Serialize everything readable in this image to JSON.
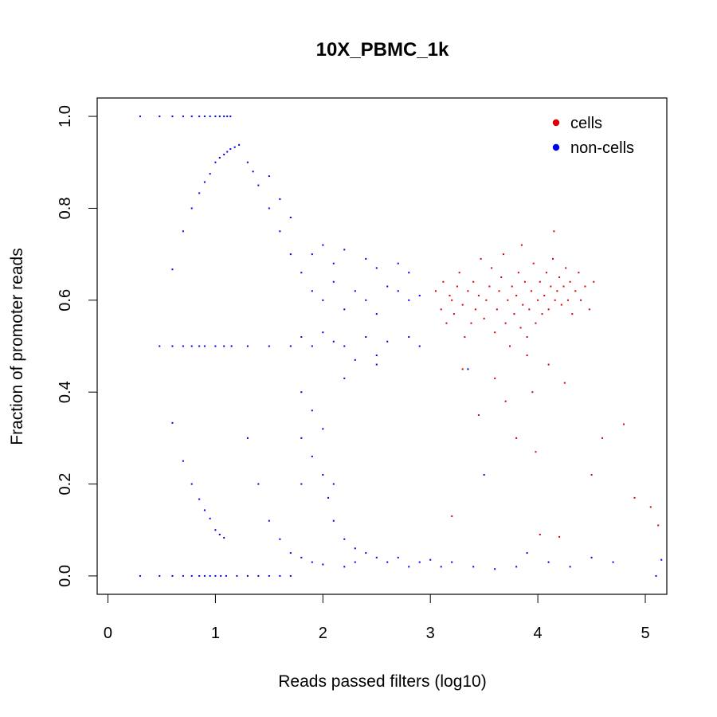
{
  "chart_data": {
    "type": "scatter",
    "title": "10X_PBMC_1k",
    "xlabel": "Reads passed filters (log10)",
    "ylabel": "Fraction of promoter reads",
    "xlim": [
      -0.1,
      5.2
    ],
    "ylim": [
      -0.04,
      1.04
    ],
    "x_ticks": [
      0,
      1,
      2,
      3,
      4,
      5
    ],
    "y_ticks": [
      0.0,
      0.2,
      0.4,
      0.6,
      0.8,
      1.0
    ],
    "x_tick_labels": [
      "0",
      "1",
      "2",
      "3",
      "4",
      "5"
    ],
    "y_tick_labels": [
      "0.0",
      "0.2",
      "0.4",
      "0.6",
      "0.8",
      "1.0"
    ],
    "grid": false,
    "legend_position": "top-right",
    "series": [
      {
        "name": "cells",
        "color": "#dd0000",
        "points": [
          [
            3.05,
            0.62
          ],
          [
            3.1,
            0.58
          ],
          [
            3.12,
            0.64
          ],
          [
            3.15,
            0.55
          ],
          [
            3.18,
            0.61
          ],
          [
            3.2,
            0.6
          ],
          [
            3.22,
            0.57
          ],
          [
            3.25,
            0.63
          ],
          [
            3.27,
            0.66
          ],
          [
            3.3,
            0.59
          ],
          [
            3.32,
            0.52
          ],
          [
            3.35,
            0.62
          ],
          [
            3.38,
            0.55
          ],
          [
            3.4,
            0.64
          ],
          [
            3.42,
            0.58
          ],
          [
            3.45,
            0.61
          ],
          [
            3.47,
            0.69
          ],
          [
            3.5,
            0.56
          ],
          [
            3.52,
            0.6
          ],
          [
            3.55,
            0.63
          ],
          [
            3.57,
            0.67
          ],
          [
            3.6,
            0.53
          ],
          [
            3.62,
            0.58
          ],
          [
            3.64,
            0.62
          ],
          [
            3.66,
            0.65
          ],
          [
            3.68,
            0.7
          ],
          [
            3.7,
            0.55
          ],
          [
            3.72,
            0.6
          ],
          [
            3.74,
            0.5
          ],
          [
            3.76,
            0.63
          ],
          [
            3.78,
            0.57
          ],
          [
            3.8,
            0.61
          ],
          [
            3.82,
            0.66
          ],
          [
            3.84,
            0.54
          ],
          [
            3.86,
            0.59
          ],
          [
            3.88,
            0.64
          ],
          [
            3.9,
            0.52
          ],
          [
            3.92,
            0.58
          ],
          [
            3.94,
            0.62
          ],
          [
            3.96,
            0.68
          ],
          [
            3.98,
            0.55
          ],
          [
            4.0,
            0.6
          ],
          [
            4.02,
            0.64
          ],
          [
            4.04,
            0.57
          ],
          [
            4.06,
            0.61
          ],
          [
            4.08,
            0.66
          ],
          [
            4.1,
            0.58
          ],
          [
            4.12,
            0.63
          ],
          [
            4.14,
            0.69
          ],
          [
            4.16,
            0.6
          ],
          [
            4.18,
            0.62
          ],
          [
            4.2,
            0.65
          ],
          [
            4.22,
            0.59
          ],
          [
            4.24,
            0.63
          ],
          [
            4.26,
            0.67
          ],
          [
            4.28,
            0.6
          ],
          [
            4.3,
            0.64
          ],
          [
            4.32,
            0.57
          ],
          [
            4.35,
            0.62
          ],
          [
            4.38,
            0.66
          ],
          [
            4.4,
            0.6
          ],
          [
            4.44,
            0.63
          ],
          [
            4.48,
            0.58
          ],
          [
            4.52,
            0.64
          ],
          [
            3.85,
            0.72
          ],
          [
            4.15,
            0.75
          ],
          [
            4.1,
            0.46
          ],
          [
            3.9,
            0.48
          ],
          [
            3.6,
            0.43
          ],
          [
            3.7,
            0.38
          ],
          [
            3.95,
            0.4
          ],
          [
            3.3,
            0.45
          ],
          [
            3.45,
            0.35
          ],
          [
            3.8,
            0.3
          ],
          [
            3.98,
            0.27
          ],
          [
            4.25,
            0.42
          ],
          [
            4.5,
            0.22
          ],
          [
            4.6,
            0.3
          ],
          [
            4.8,
            0.33
          ],
          [
            4.9,
            0.17
          ],
          [
            5.05,
            0.15
          ],
          [
            5.12,
            0.11
          ],
          [
            4.02,
            0.09
          ],
          [
            4.2,
            0.085
          ],
          [
            3.2,
            0.13
          ]
        ]
      },
      {
        "name": "non-cells",
        "color": "#0000ee",
        "points": [
          [
            0.3,
            1.0
          ],
          [
            0.48,
            1.0
          ],
          [
            0.6,
            1.0
          ],
          [
            0.7,
            1.0
          ],
          [
            0.78,
            1.0
          ],
          [
            0.85,
            1.0
          ],
          [
            0.9,
            1.0
          ],
          [
            0.95,
            1.0
          ],
          [
            1.0,
            1.0
          ],
          [
            1.04,
            1.0
          ],
          [
            1.08,
            1.0
          ],
          [
            1.11,
            1.0
          ],
          [
            1.14,
            1.0
          ],
          [
            0.3,
            0.0
          ],
          [
            0.48,
            0.0
          ],
          [
            0.6,
            0.0
          ],
          [
            0.7,
            0.0
          ],
          [
            0.78,
            0.0
          ],
          [
            0.85,
            0.0
          ],
          [
            0.9,
            0.0
          ],
          [
            0.95,
            0.0
          ],
          [
            1.0,
            0.0
          ],
          [
            1.05,
            0.0
          ],
          [
            1.1,
            0.0
          ],
          [
            1.2,
            0.0
          ],
          [
            1.3,
            0.0
          ],
          [
            1.4,
            0.0
          ],
          [
            1.5,
            0.0
          ],
          [
            1.6,
            0.0
          ],
          [
            1.7,
            0.0
          ],
          [
            0.48,
            0.5
          ],
          [
            0.6,
            0.5
          ],
          [
            0.7,
            0.5
          ],
          [
            0.78,
            0.5
          ],
          [
            0.85,
            0.5
          ],
          [
            0.9,
            0.5
          ],
          [
            1.0,
            0.5
          ],
          [
            1.08,
            0.5
          ],
          [
            1.15,
            0.5
          ],
          [
            1.3,
            0.5
          ],
          [
            1.5,
            0.5
          ],
          [
            1.7,
            0.5
          ],
          [
            0.6,
            0.667
          ],
          [
            0.6,
            0.333
          ],
          [
            0.7,
            0.75
          ],
          [
            0.7,
            0.25
          ],
          [
            0.78,
            0.8
          ],
          [
            0.78,
            0.2
          ],
          [
            0.85,
            0.833
          ],
          [
            0.85,
            0.167
          ],
          [
            0.9,
            0.857
          ],
          [
            0.9,
            0.143
          ],
          [
            0.95,
            0.875
          ],
          [
            0.95,
            0.125
          ],
          [
            1.0,
            0.9
          ],
          [
            1.0,
            0.1
          ],
          [
            1.04,
            0.91
          ],
          [
            1.04,
            0.09
          ],
          [
            1.08,
            0.917
          ],
          [
            1.08,
            0.083
          ],
          [
            1.11,
            0.923
          ],
          [
            1.14,
            0.929
          ],
          [
            1.18,
            0.933
          ],
          [
            1.22,
            0.938
          ],
          [
            1.3,
            0.9
          ],
          [
            1.35,
            0.88
          ],
          [
            1.4,
            0.85
          ],
          [
            1.5,
            0.8
          ],
          [
            1.6,
            0.75
          ],
          [
            1.7,
            0.7
          ],
          [
            1.8,
            0.66
          ],
          [
            1.9,
            0.62
          ],
          [
            2.0,
            0.6
          ],
          [
            2.1,
            0.64
          ],
          [
            2.2,
            0.58
          ],
          [
            2.3,
            0.62
          ],
          [
            2.4,
            0.6
          ],
          [
            2.5,
            0.57
          ],
          [
            2.6,
            0.63
          ],
          [
            2.7,
            0.62
          ],
          [
            2.8,
            0.6
          ],
          [
            2.9,
            0.61
          ],
          [
            1.9,
            0.7
          ],
          [
            2.0,
            0.72
          ],
          [
            2.1,
            0.68
          ],
          [
            2.2,
            0.71
          ],
          [
            2.4,
            0.69
          ],
          [
            2.5,
            0.67
          ],
          [
            2.7,
            0.68
          ],
          [
            2.8,
            0.66
          ],
          [
            1.6,
            0.82
          ],
          [
            1.5,
            0.87
          ],
          [
            1.7,
            0.78
          ],
          [
            1.8,
            0.52
          ],
          [
            1.9,
            0.5
          ],
          [
            2.0,
            0.53
          ],
          [
            2.1,
            0.51
          ],
          [
            2.2,
            0.5
          ],
          [
            2.3,
            0.47
          ],
          [
            2.4,
            0.52
          ],
          [
            2.5,
            0.48
          ],
          [
            2.6,
            0.51
          ],
          [
            2.8,
            0.52
          ],
          [
            2.9,
            0.5
          ],
          [
            2.2,
            0.43
          ],
          [
            2.5,
            0.46
          ],
          [
            1.8,
            0.4
          ],
          [
            1.9,
            0.36
          ],
          [
            2.0,
            0.32
          ],
          [
            1.8,
            0.3
          ],
          [
            1.9,
            0.26
          ],
          [
            2.0,
            0.22
          ],
          [
            2.1,
            0.2
          ],
          [
            1.8,
            0.2
          ],
          [
            2.05,
            0.17
          ],
          [
            2.1,
            0.12
          ],
          [
            2.2,
            0.08
          ],
          [
            2.3,
            0.06
          ],
          [
            1.3,
            0.3
          ],
          [
            1.4,
            0.2
          ],
          [
            1.5,
            0.12
          ],
          [
            1.6,
            0.08
          ],
          [
            1.7,
            0.05
          ],
          [
            1.8,
            0.04
          ],
          [
            1.9,
            0.03
          ],
          [
            2.0,
            0.025
          ],
          [
            2.2,
            0.02
          ],
          [
            2.3,
            0.03
          ],
          [
            2.4,
            0.05
          ],
          [
            2.5,
            0.04
          ],
          [
            2.6,
            0.03
          ],
          [
            2.7,
            0.04
          ],
          [
            2.8,
            0.02
          ],
          [
            2.9,
            0.03
          ],
          [
            3.0,
            0.035
          ],
          [
            3.1,
            0.02
          ],
          [
            3.2,
            0.03
          ],
          [
            3.4,
            0.02
          ],
          [
            3.6,
            0.015
          ],
          [
            3.8,
            0.02
          ],
          [
            3.9,
            0.05
          ],
          [
            4.1,
            0.03
          ],
          [
            4.3,
            0.02
          ],
          [
            4.5,
            0.04
          ],
          [
            4.7,
            0.03
          ],
          [
            5.1,
            0.0
          ],
          [
            5.15,
            0.035
          ],
          [
            3.35,
            0.45
          ],
          [
            3.5,
            0.22
          ]
        ]
      }
    ]
  }
}
